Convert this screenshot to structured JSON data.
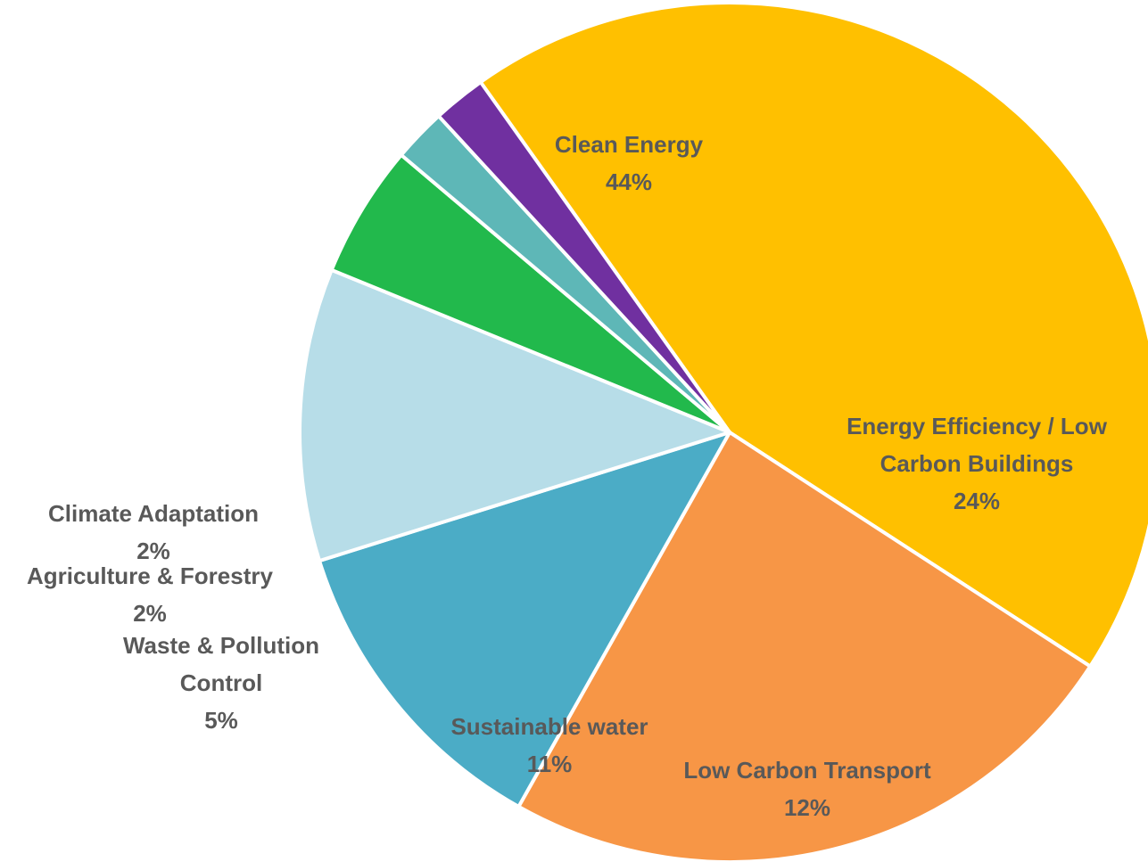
{
  "chart_data": {
    "type": "pie",
    "title": "",
    "slices": [
      {
        "label": [
          "Clean Energy"
        ],
        "value": 44,
        "pct_label": "44%",
        "color": "#FFC000"
      },
      {
        "label": [
          "Energy Efficiency / Low",
          "Carbon Buildings"
        ],
        "value": 24,
        "pct_label": "24%",
        "color": "#F79646"
      },
      {
        "label": [
          "Low Carbon Transport"
        ],
        "value": 12,
        "pct_label": "12%",
        "color": "#4BACC6"
      },
      {
        "label": [
          "Sustainable water"
        ],
        "value": 11,
        "pct_label": "11%",
        "color": "#B7DDE8"
      },
      {
        "label": [
          "Waste & Pollution",
          "Control"
        ],
        "value": 5,
        "pct_label": "5%",
        "color": "#22B94C"
      },
      {
        "label": [
          "Agriculture & Forestry"
        ],
        "value": 2,
        "pct_label": "2%",
        "color": "#5EB7B7"
      },
      {
        "label": [
          "Climate Adaptation"
        ],
        "value": 2,
        "pct_label": "2%",
        "color": "#7030A0"
      }
    ],
    "legend": "none",
    "slice_border_color": "#FFFFFF"
  }
}
